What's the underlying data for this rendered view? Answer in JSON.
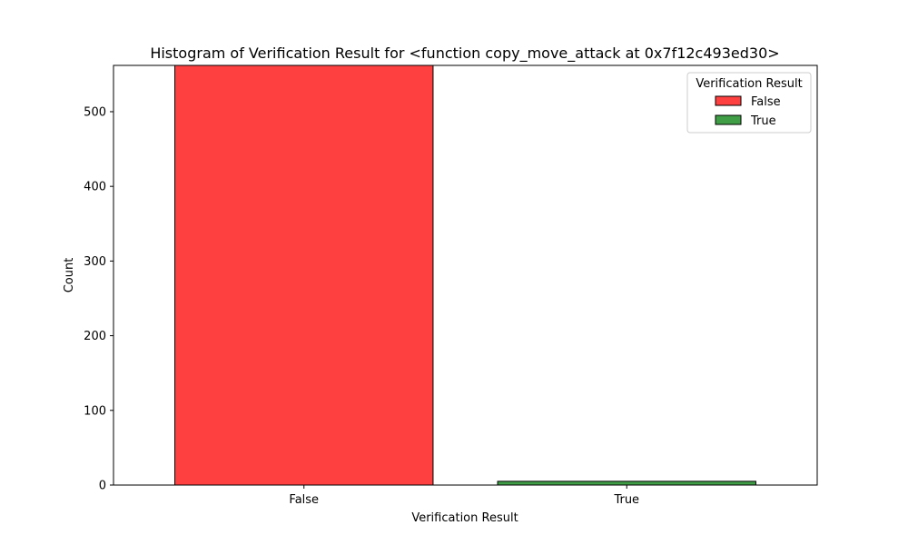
{
  "chart_data": {
    "type": "bar",
    "title": "Histogram of Verification Result for <function copy_move_attack at 0x7f12c493ed30>",
    "xlabel": "Verification Result",
    "ylabel": "Count",
    "categories": [
      "False",
      "True"
    ],
    "values": [
      598,
      5
    ],
    "colors": [
      "#ff4040",
      "#3f9e46"
    ],
    "ylim": [
      0,
      562
    ],
    "yticks": [
      0,
      100,
      200,
      300,
      400,
      500
    ],
    "grid": false,
    "legend": {
      "title": "Verification Result",
      "placement": "top-right",
      "entries": [
        {
          "label": "False",
          "color": "#ff4040"
        },
        {
          "label": "True",
          "color": "#3f9e46"
        }
      ]
    }
  }
}
